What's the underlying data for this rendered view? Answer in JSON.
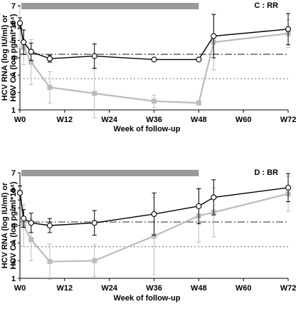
{
  "chart_data": [
    {
      "type": "line",
      "panel_label": "C : RR",
      "xlabel": "Week of follow-up",
      "ylabel_line1": "HCV RNA (log IU/ml) or",
      "ylabel_line2": "HCV CA (log pg/ml*10⁴)",
      "xlim": [
        0,
        72
      ],
      "ylim": [
        1,
        7
      ],
      "x_ticks": [
        0,
        12,
        24,
        36,
        48,
        60,
        72
      ],
      "x_tick_labels": [
        "W0",
        "W12",
        "W24",
        "W36",
        "W48",
        "W60",
        "W72"
      ],
      "y_ticks": [
        1,
        2,
        3,
        4,
        5,
        6,
        7
      ],
      "y_tick_labels": [
        "1",
        "2",
        "3",
        "4",
        "5",
        "6",
        "7"
      ],
      "treatment_bar": [
        0,
        48
      ],
      "ref_lines": [
        4.2,
        2.8
      ],
      "series": [
        {
          "marker": "circle",
          "color": "#000000",
          "x": [
            0,
            1,
            3,
            8,
            20,
            36,
            48,
            52,
            72
          ],
          "y": [
            6.0,
            4.9,
            4.35,
            3.95,
            4.1,
            3.9,
            3.9,
            5.25,
            5.65
          ],
          "err": [
            0.3,
            0.7,
            0.5,
            0.2,
            0.7,
            0,
            0,
            1.25,
            0.9
          ]
        },
        {
          "marker": "square",
          "color": "#bbbbbb",
          "x": [
            0,
            1,
            3,
            8,
            20,
            36,
            48,
            52,
            72
          ],
          "y": [
            5.75,
            4.6,
            3.75,
            2.3,
            1.95,
            1.5,
            1.4,
            4.9,
            5.4
          ],
          "err": [
            1.2,
            1.0,
            1.3,
            0.9,
            1.4,
            0.35,
            0,
            1.6,
            0.8
          ]
        }
      ]
    },
    {
      "type": "line",
      "panel_label": "D : BR",
      "xlabel": "Week of follow-up",
      "ylabel_line1": "HCV RNA (log IU/ml) or",
      "ylabel_line2": "HCV CA (log pg/ml*10⁴)",
      "xlim": [
        0,
        72
      ],
      "ylim": [
        1,
        7
      ],
      "x_ticks": [
        0,
        12,
        24,
        36,
        48,
        60,
        72
      ],
      "x_tick_labels": [
        "W0",
        "W12",
        "W24",
        "W36",
        "W48",
        "W60",
        "W72"
      ],
      "y_ticks": [
        1,
        2,
        3,
        4,
        5,
        6,
        7
      ],
      "y_tick_labels": [
        "1",
        "2",
        "3",
        "4",
        "5",
        "6",
        "7"
      ],
      "treatment_bar": [
        0,
        48
      ],
      "ref_lines": [
        4.2,
        2.8
      ],
      "series": [
        {
          "marker": "circle",
          "color": "#000000",
          "x": [
            0,
            1,
            3,
            8,
            20,
            36,
            48,
            52,
            72
          ],
          "y": [
            5.85,
            4.4,
            4.15,
            4.0,
            4.15,
            4.65,
            5.1,
            5.6,
            6.15
          ],
          "err": [
            0.4,
            0.5,
            0.55,
            0.4,
            0.7,
            1.2,
            1.0,
            1.0,
            0.8
          ]
        },
        {
          "marker": "square",
          "color": "#bbbbbb",
          "x": [
            0,
            1,
            3,
            8,
            20,
            36,
            48,
            52,
            72
          ],
          "y": [
            5.9,
            4.0,
            3.2,
            1.95,
            2.0,
            3.4,
            4.55,
            4.75,
            5.8
          ],
          "err": [
            0.3,
            1.2,
            1.2,
            1.0,
            0.9,
            2.2,
            1.5,
            1.4,
            1.0
          ]
        }
      ]
    }
  ]
}
